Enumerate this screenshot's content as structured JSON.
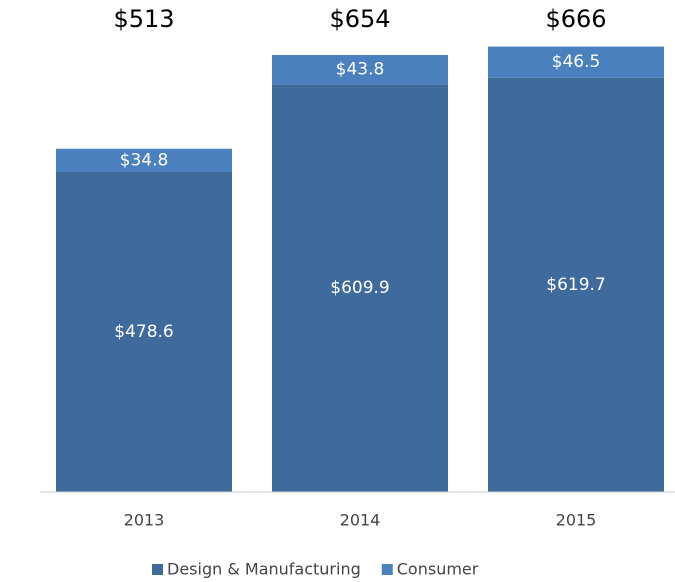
{
  "chart_data": {
    "type": "stacked_bar",
    "categories": [
      "2013",
      "2014",
      "2015"
    ],
    "series": [
      {
        "name": "Design & Manufacturing",
        "color": "#3e6a9c",
        "values": [
          478.6,
          609.9,
          619.7
        ],
        "value_labels": [
          "$478.6",
          "$609.9",
          "$619.7"
        ]
      },
      {
        "name": "Consumer",
        "color": "#4b80be",
        "values": [
          34.8,
          43.8,
          46.5
        ],
        "value_labels": [
          "$34.8",
          "$43.8",
          "$46.5"
        ]
      }
    ],
    "totals": [
      513,
      654,
      666
    ],
    "total_labels": [
      "$513",
      "$654",
      "$666"
    ],
    "ylim": [
      0,
      700
    ]
  }
}
